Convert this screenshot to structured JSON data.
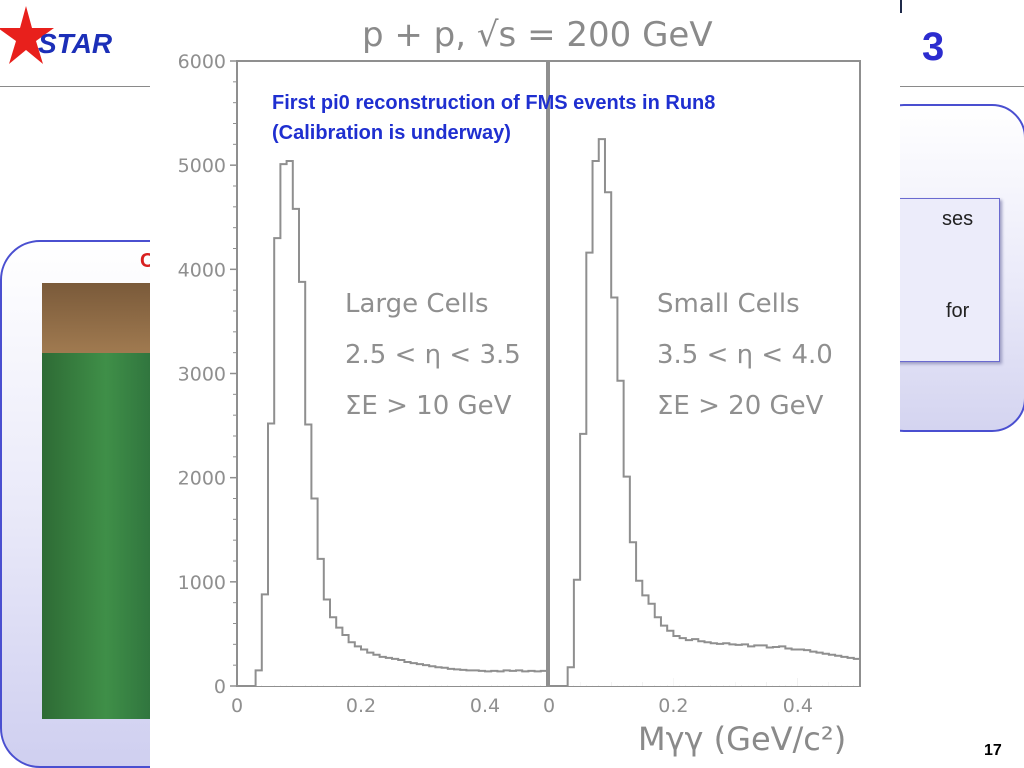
{
  "header": {
    "logo_text": "STAR",
    "title_fragment": "3"
  },
  "background": {
    "right_panel_fragments": [
      "ses",
      "for"
    ],
    "left_panel_fragment": "C"
  },
  "annotation": {
    "line1": "First pi0 reconstruction of  FMS events in Run8",
    "line2": "(Calibration is underway)"
  },
  "page_number": "17",
  "colors": {
    "accent_blue": "#1f2fd0",
    "logo_red": "#e8201c",
    "panel_border": "#4a4fd0"
  },
  "chart_data": {
    "type": "bar",
    "title": "p + p, √s = 200 GeV",
    "xlabel": "Mγγ (GeV/c²)",
    "ylabel": "",
    "ylim": [
      0,
      6000
    ],
    "yticks": [
      "0",
      "1000",
      "2000",
      "3000",
      "4000",
      "5000",
      "6000"
    ],
    "xticks": [
      "0",
      "0.2",
      "0.4"
    ],
    "bin_width": 0.01,
    "panels": [
      {
        "name": "Large Cells",
        "labels": [
          "Large Cells",
          "2.5 < η < 3.5",
          "ΣE > 10 GeV"
        ],
        "xlim": [
          0,
          0.5
        ],
        "values": [
          0,
          0,
          0,
          150,
          880,
          2520,
          4300,
          5010,
          5040,
          4580,
          3880,
          2510,
          1800,
          1220,
          830,
          660,
          560,
          490,
          420,
          380,
          350,
          320,
          300,
          280,
          270,
          260,
          250,
          230,
          220,
          210,
          200,
          190,
          180,
          175,
          165,
          160,
          155,
          150,
          150,
          145,
          140,
          145,
          140,
          150,
          145,
          150,
          140,
          145,
          140,
          145
        ]
      },
      {
        "name": "Small Cells",
        "labels": [
          "Small Cells",
          "3.5 < η < 4.0",
          "ΣE > 20 GeV"
        ],
        "xlim": [
          0,
          0.5
        ],
        "values": [
          0,
          0,
          0,
          180,
          1020,
          2420,
          4160,
          5040,
          5250,
          4740,
          3730,
          2930,
          2010,
          1380,
          1010,
          870,
          790,
          660,
          580,
          530,
          480,
          460,
          440,
          450,
          430,
          420,
          410,
          405,
          410,
          400,
          395,
          400,
          380,
          390,
          390,
          370,
          375,
          380,
          360,
          350,
          350,
          345,
          330,
          320,
          310,
          300,
          290,
          280,
          270,
          260
        ]
      }
    ]
  }
}
